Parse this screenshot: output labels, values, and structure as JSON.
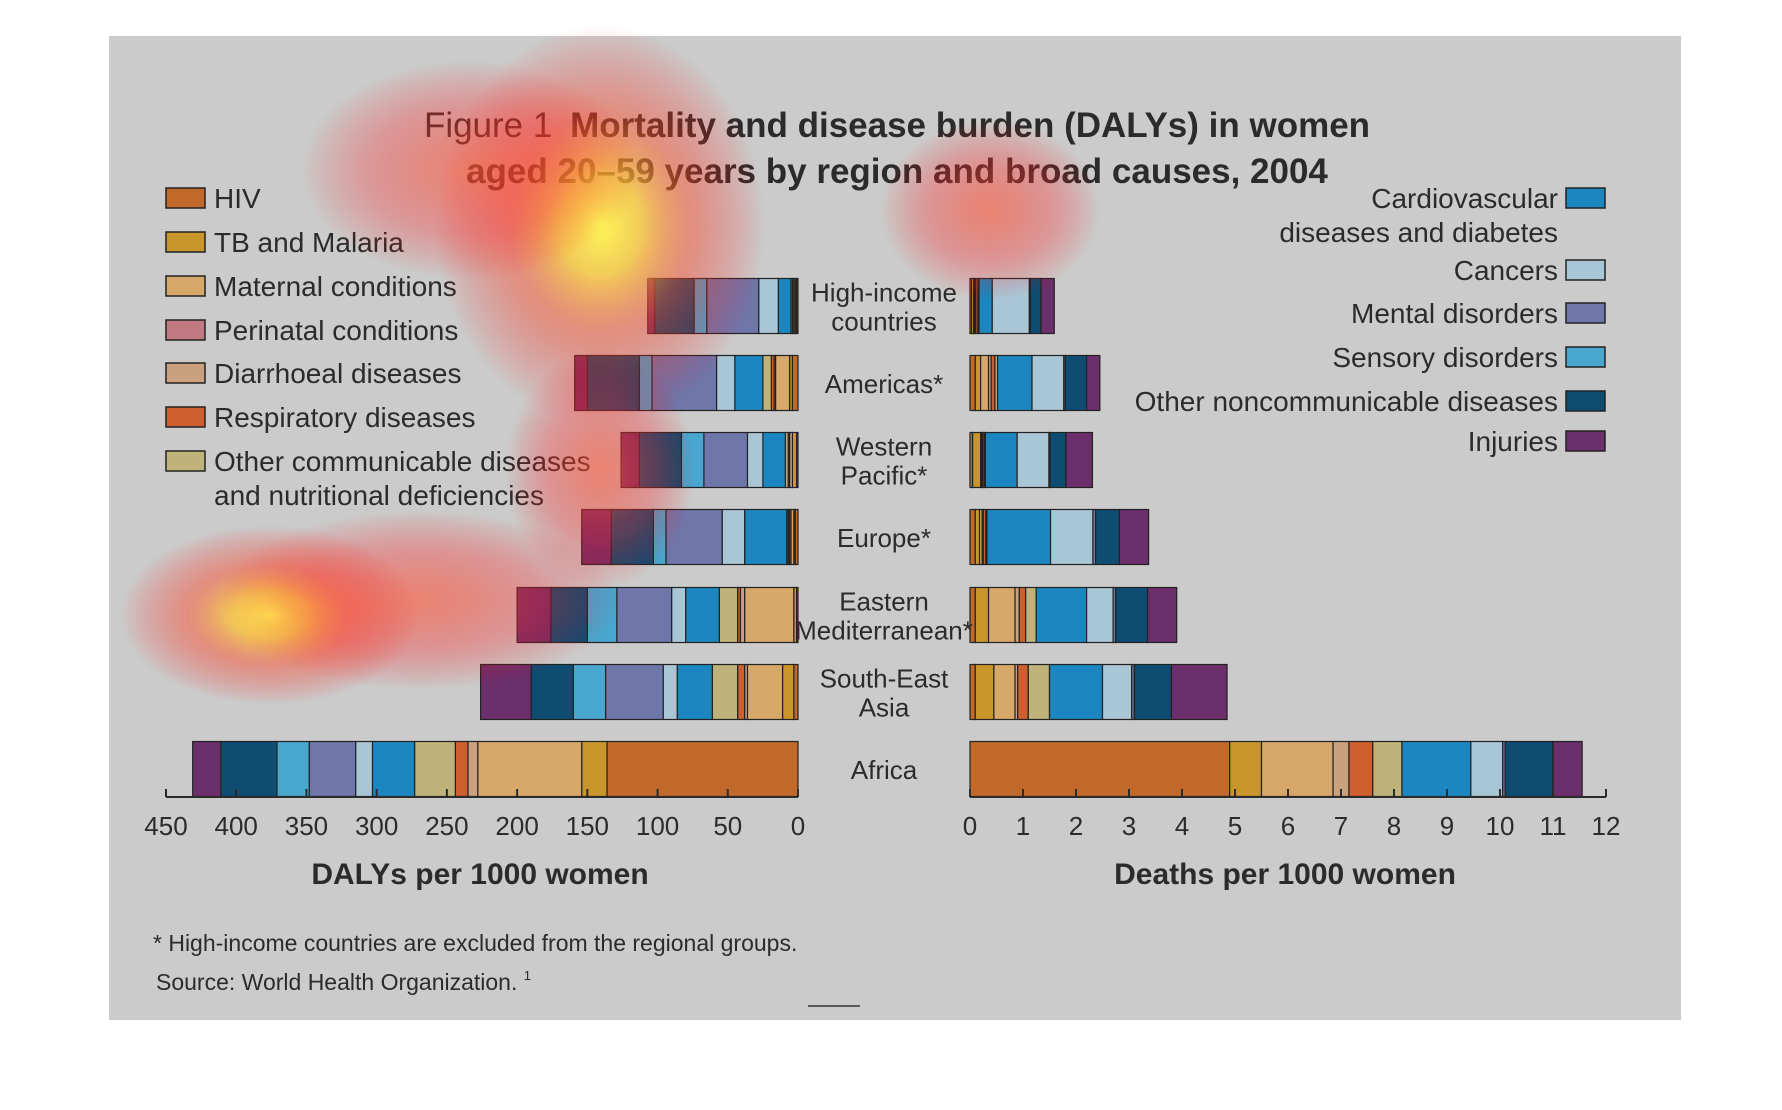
{
  "title": {
    "prefix": "Figure 1",
    "line1_rest": "Mortality and disease burden (DALYs) in women",
    "line2": "aged 20–59 years by region and broad causes, 2004"
  },
  "colors": {
    "background_panel": "#cbcbcb",
    "bar_outline": "#222222",
    "text": "#2b2b2b"
  },
  "legend_left": [
    {
      "label": "HIV",
      "color": "#c0692a"
    },
    {
      "label": "TB and Malaria",
      "color": "#c9962b"
    },
    {
      "label": "Maternal conditions",
      "color": "#d8a86a"
    },
    {
      "label": "Perinatal conditions",
      "color": "#c17a82"
    },
    {
      "label": "Diarrhoeal diseases",
      "color": "#c9a17e"
    },
    {
      "label": "Respiratory diseases",
      "color": "#cf5e2e"
    },
    {
      "label": "Other communicable diseases",
      "label2": "and nutritional deficiencies",
      "color": "#bfb27a"
    }
  ],
  "legend_right": [
    {
      "label": "Cardiovascular",
      "label2": "diseases and diabetes",
      "color": "#1b86bf"
    },
    {
      "label": "Cancers",
      "color": "#a9c6d6"
    },
    {
      "label": "Mental disorders",
      "color": "#6f76aa"
    },
    {
      "label": "Sensory disorders",
      "color": "#49a6cf"
    },
    {
      "label": "Other noncommunicable diseases",
      "color": "#0f4c72"
    },
    {
      "label": "Injuries",
      "color": "#6b2f6b"
    }
  ],
  "region_labels": [
    [
      "High-income",
      "countries"
    ],
    [
      "Americas*"
    ],
    [
      "Western",
      "Pacific*"
    ],
    [
      "Europe*"
    ],
    [
      "Eastern",
      "Mediterranean*"
    ],
    [
      "South-East",
      "Asia"
    ],
    [
      "Africa"
    ]
  ],
  "chart_data": [
    {
      "type": "bar",
      "orientation": "horizontal",
      "stacked": true,
      "xlabel": "DALYs per 1000 women",
      "xlim": [
        450,
        0
      ],
      "xticks": [
        450,
        400,
        350,
        300,
        250,
        200,
        150,
        100,
        50,
        0
      ],
      "categories": [
        "High-income countries",
        "Americas*",
        "Western Pacific*",
        "Europe*",
        "Eastern Mediterranean*",
        "South-East Asia",
        "Africa"
      ],
      "series": [
        {
          "name": "HIV",
          "values": [
            1,
            4,
            1,
            2,
            1,
            3,
            136
          ]
        },
        {
          "name": "TB and Malaria",
          "values": [
            1,
            2,
            3,
            1,
            2,
            8,
            18
          ]
        },
        {
          "name": "Maternal conditions",
          "values": [
            1,
            10,
            2,
            2,
            35,
            25,
            74
          ]
        },
        {
          "name": "Perinatal conditions",
          "values": [
            0,
            0,
            0,
            0,
            0,
            0,
            0
          ]
        },
        {
          "name": "Diarrhoeal diseases",
          "values": [
            0,
            1,
            0,
            1,
            3,
            2,
            7
          ]
        },
        {
          "name": "Respiratory diseases",
          "values": [
            1,
            2,
            1,
            1,
            2,
            5,
            9
          ]
        },
        {
          "name": "Other communicable diseases and nutritional deficiencies",
          "values": [
            1,
            6,
            2,
            1,
            13,
            18,
            29
          ]
        },
        {
          "name": "Cardiovascular diseases and diabetes",
          "values": [
            9,
            20,
            16,
            30,
            24,
            25,
            30
          ]
        },
        {
          "name": "Cancers",
          "values": [
            14,
            13,
            11,
            16,
            10,
            10,
            12
          ]
        },
        {
          "name": "Mental disorders",
          "values": [
            37,
            46,
            31,
            40,
            39,
            41,
            33
          ]
        },
        {
          "name": "Sensory disorders",
          "values": [
            9,
            9,
            16,
            9,
            21,
            23,
            23
          ]
        },
        {
          "name": "Other noncommunicable diseases",
          "values": [
            28,
            37,
            30,
            30,
            26,
            30,
            40
          ]
        },
        {
          "name": "Injuries",
          "values": [
            5,
            9,
            13,
            21,
            24,
            36,
            20
          ]
        }
      ]
    },
    {
      "type": "bar",
      "orientation": "horizontal",
      "stacked": true,
      "xlabel": "Deaths per 1000 women",
      "xlim": [
        0,
        12
      ],
      "xticks": [
        0,
        1,
        2,
        3,
        4,
        5,
        6,
        7,
        8,
        9,
        10,
        11,
        12
      ],
      "categories": [
        "High-income countries",
        "Americas*",
        "Western Pacific*",
        "Europe*",
        "Eastern Mediterranean*",
        "South-East Asia",
        "Africa"
      ],
      "series": [
        {
          "name": "HIV",
          "values": [
            0.03,
            0.1,
            0.05,
            0.1,
            0.1,
            0.1,
            4.9
          ]
        },
        {
          "name": "TB and Malaria",
          "values": [
            0.04,
            0.1,
            0.15,
            0.08,
            0.25,
            0.35,
            0.6
          ]
        },
        {
          "name": "Maternal conditions",
          "values": [
            0.02,
            0.15,
            0.02,
            0.05,
            0.5,
            0.4,
            1.35
          ]
        },
        {
          "name": "Perinatal conditions",
          "values": [
            0,
            0,
            0,
            0,
            0,
            0,
            0
          ]
        },
        {
          "name": "Diarrhoeal diseases",
          "values": [
            0.02,
            0.05,
            0.02,
            0.02,
            0.08,
            0.05,
            0.3
          ]
        },
        {
          "name": "Respiratory diseases",
          "values": [
            0.04,
            0.07,
            0.03,
            0.05,
            0.12,
            0.2,
            0.45
          ]
        },
        {
          "name": "Other communicable diseases and nutritional deficiencies",
          "values": [
            0.02,
            0.05,
            0.02,
            0.02,
            0.2,
            0.4,
            0.55
          ]
        },
        {
          "name": "Cardiovascular diseases and diabetes",
          "values": [
            0.25,
            0.65,
            0.6,
            1.2,
            0.95,
            1.0,
            1.3
          ]
        },
        {
          "name": "Cancers",
          "values": [
            0.7,
            0.6,
            0.6,
            0.8,
            0.5,
            0.55,
            0.6
          ]
        },
        {
          "name": "Mental disorders",
          "values": [
            0.02,
            0.03,
            0.02,
            0.05,
            0.05,
            0.05,
            0.05
          ]
        },
        {
          "name": "Sensory disorders",
          "values": [
            0,
            0,
            0,
            0,
            0,
            0,
            0
          ]
        },
        {
          "name": "Other noncommunicable diseases",
          "values": [
            0.2,
            0.4,
            0.3,
            0.45,
            0.6,
            0.7,
            0.9
          ]
        },
        {
          "name": "Injuries",
          "values": [
            0.25,
            0.25,
            0.5,
            0.55,
            0.55,
            1.05,
            0.55
          ]
        }
      ]
    }
  ],
  "footnote": "* High-income countries are excluded from the regional groups.",
  "source": "Source: World Health Organization.",
  "source_sup": "1"
}
